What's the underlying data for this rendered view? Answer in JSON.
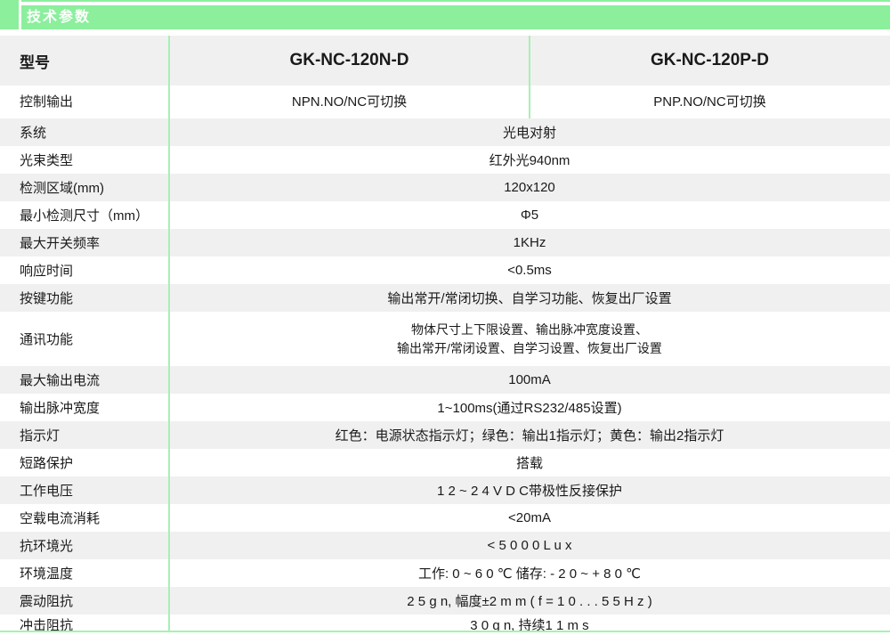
{
  "header": {
    "title": "技术参数"
  },
  "colors": {
    "accent_green": "#8bef9c",
    "divider_green": "#a5f2b0",
    "row_gray": "#f0f0f0",
    "text": "#1a1a1a",
    "title_text": "#ffffff"
  },
  "table": {
    "model_row": {
      "label": "型号",
      "model_left": "GK-NC-120N-D",
      "model_right": "GK-NC-120P-D"
    },
    "output_row": {
      "label": "控制输出",
      "value_left": "NPN.NO/NC可切换",
      "value_right": "PNP.NO/NC可切换"
    },
    "rows": [
      {
        "label": "系统",
        "value": "光电对射"
      },
      {
        "label": "光束类型",
        "value": "红外光940nm"
      },
      {
        "label": "检测区域(mm)",
        "value": "120x120"
      },
      {
        "label": "最小检测尺寸（mm）",
        "value": "Φ5"
      },
      {
        "label": "最大开关频率",
        "value": "1KHz"
      },
      {
        "label": "响应时间",
        "value": "<0.5ms"
      },
      {
        "label": "按键功能",
        "value": "输出常开/常闭切换、自学习功能、恢复出厂设置"
      },
      {
        "label": "通讯功能",
        "value_line1": "物体尺寸上下限设置、输出脉冲宽度设置、",
        "value_line2": "输出常开/常闭设置、自学习设置、恢复出厂设置"
      },
      {
        "label": "最大输出电流",
        "value": "100mA"
      },
      {
        "label": "输出脉冲宽度",
        "value": "1~100ms(通过RS232/485设置)"
      },
      {
        "label": "指示灯",
        "value": "红色：电源状态指示灯；绿色：输出1指示灯；黄色：输出2指示灯"
      },
      {
        "label": "短路保护",
        "value": "搭载"
      },
      {
        "label": "工作电压",
        "value": "1 2 ~ 2 4 V D C带极性反接保护"
      },
      {
        "label": "空载电流消耗",
        "value": "<20mA"
      },
      {
        "label": "抗环境光",
        "value": "< 5 0 0 0 L u x"
      },
      {
        "label": "环境温度",
        "value": "工作: 0 ~ 6 0 ℃ 储存: - 2 0 ~ + 8 0 ℃"
      },
      {
        "label": "震动阻抗",
        "value": "2 5 g n, 幅度±2 m m ( f = 1 0 . . . 5 5 H z )"
      },
      {
        "label": "冲击阻抗",
        "value": "3 0 g n, 持续1 1 m s"
      }
    ]
  }
}
